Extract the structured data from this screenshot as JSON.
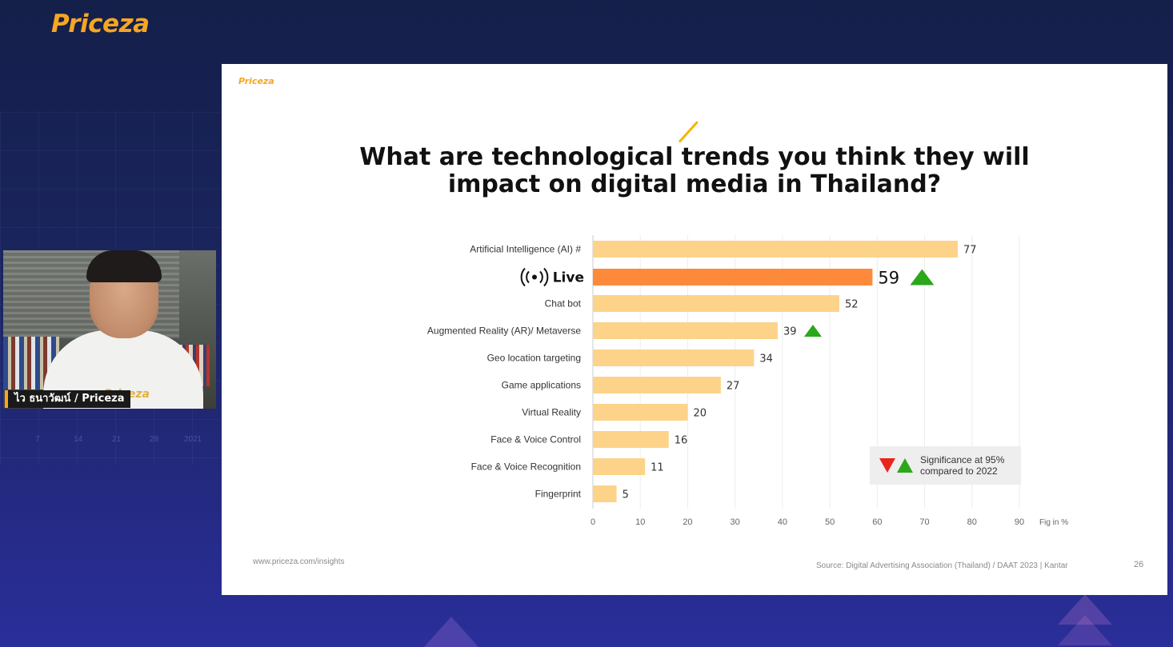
{
  "app": {
    "brand_logo": "Priceza"
  },
  "webcam": {
    "name_tag": "ไว ธนาวัฒน์ / Priceza",
    "shirt_logo": "Priceza"
  },
  "background": {
    "ticks": [
      "7",
      "14",
      "21",
      "28",
      "2021"
    ]
  },
  "slide": {
    "logo": "Priceza",
    "title_line1": "What are technological trends you think they will",
    "title_line2": "impact on digital media in Thailand?",
    "legend": {
      "line1": "Significance at 95%",
      "line2": "compared to 2022",
      "down_color": "#e8261c",
      "up_color": "#2aa81a"
    },
    "footer_url": "www.priceza.com/insights",
    "footer_source": "Source: Digital Advertising Association (Thailand) / DAAT 2023 | Kantar",
    "page_number": "26"
  },
  "chart_data": {
    "type": "bar",
    "orientation": "horizontal",
    "categories": [
      "Artificial Intelligence (AI) #",
      "Live",
      "Chat bot",
      "Augmented Reality (AR)/ Metaverse",
      "Geo location targeting",
      "Game applications",
      "Virtual Reality",
      "Face & Voice Control",
      "Face & Voice Recognition",
      "Fingerprint"
    ],
    "values": [
      77,
      59,
      52,
      39,
      34,
      27,
      20,
      16,
      11,
      5
    ],
    "highlight_index": 1,
    "highlight_icon": "live-broadcast-icon",
    "significance_up": [
      1,
      3
    ],
    "xlim": [
      0,
      90
    ],
    "xticks": [
      0,
      10,
      20,
      30,
      40,
      50,
      60,
      70,
      80,
      90
    ],
    "xlabel": "Fig in %",
    "grid": true,
    "bar_color": "#fdd38a",
    "highlight_color": "#fd8a3b",
    "legend_placement": "bottom-right"
  }
}
